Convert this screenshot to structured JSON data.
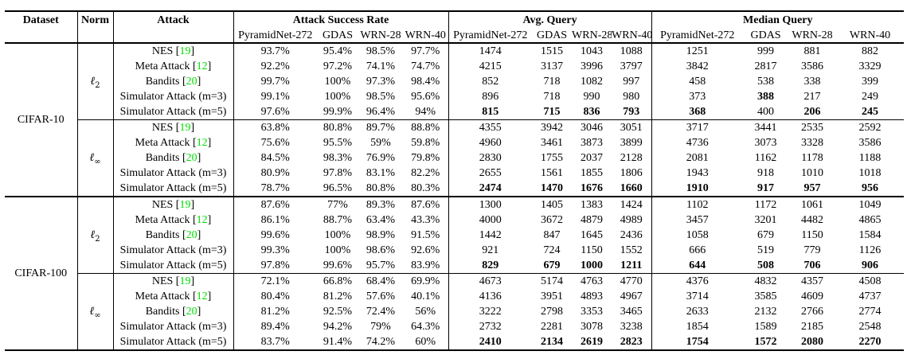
{
  "table": {
    "colors": {
      "citation_green": "#00dd00",
      "text": "#000000",
      "rule": "#000000"
    },
    "header": {
      "dataset": "Dataset",
      "norm": "Norm",
      "attack": "Attack",
      "group_asr": "Attack Success Rate",
      "group_avg": "Avg. Query",
      "group_median": "Median Query",
      "subcols": [
        "PyramidNet-272",
        "GDAS",
        "WRN-28",
        "WRN-40"
      ]
    },
    "sections": [
      {
        "dataset": "CIFAR-10",
        "blocks": [
          {
            "norm": {
              "symbol": "ℓ",
              "sub": "2"
            },
            "rows": [
              {
                "attack": "NES",
                "cite": "19",
                "asr": [
                  "93.7%",
                  "95.4%",
                  "98.5%",
                  "97.7%"
                ],
                "avg": [
                  "1474",
                  "1515",
                  "1043",
                  "1088"
                ],
                "med": [
                  "1251",
                  "999",
                  "881",
                  "882"
                ]
              },
              {
                "attack": "Meta Attack",
                "cite": "12",
                "asr": [
                  "92.2%",
                  "97.2%",
                  "74.1%",
                  "74.7%"
                ],
                "avg": [
                  "4215",
                  "3137",
                  "3996",
                  "3797"
                ],
                "med": [
                  "3842",
                  "2817",
                  "3586",
                  "3329"
                ]
              },
              {
                "attack": "Bandits",
                "cite": "20",
                "asr": [
                  "99.7%",
                  "100%",
                  "97.3%",
                  "98.4%"
                ],
                "avg": [
                  "852",
                  "718",
                  "1082",
                  "997"
                ],
                "med": [
                  "458",
                  "538",
                  "338",
                  "399"
                ]
              },
              {
                "attack": "Simulator Attack (m=3)",
                "asr": [
                  "99.1%",
                  "100%",
                  "98.5%",
                  "95.6%"
                ],
                "avg": [
                  "896",
                  "718",
                  "990",
                  "980"
                ],
                "med": [
                  "373",
                  "388",
                  "217",
                  "249"
                ],
                "med_bold": [
                  1
                ]
              },
              {
                "attack": "Simulator Attack (m=5)",
                "asr": [
                  "97.6%",
                  "99.9%",
                  "96.4%",
                  "94%"
                ],
                "avg": [
                  "815",
                  "715",
                  "836",
                  "793"
                ],
                "med": [
                  "368",
                  "400",
                  "206",
                  "245"
                ],
                "avg_bold": [
                  0,
                  1,
                  2,
                  3
                ],
                "med_bold": [
                  0,
                  2,
                  3
                ]
              }
            ]
          },
          {
            "norm": {
              "symbol": "ℓ",
              "sub": "∞"
            },
            "rows": [
              {
                "attack": "NES",
                "cite": "19",
                "asr": [
                  "63.8%",
                  "80.8%",
                  "89.7%",
                  "88.8%"
                ],
                "avg": [
                  "4355",
                  "3942",
                  "3046",
                  "3051"
                ],
                "med": [
                  "3717",
                  "3441",
                  "2535",
                  "2592"
                ]
              },
              {
                "attack": "Meta Attack",
                "cite": "12",
                "asr": [
                  "75.6%",
                  "95.5%",
                  "59%",
                  "59.8%"
                ],
                "avg": [
                  "4960",
                  "3461",
                  "3873",
                  "3899"
                ],
                "med": [
                  "4736",
                  "3073",
                  "3328",
                  "3586"
                ]
              },
              {
                "attack": "Bandits",
                "cite": "20",
                "asr": [
                  "84.5%",
                  "98.3%",
                  "76.9%",
                  "79.8%"
                ],
                "avg": [
                  "2830",
                  "1755",
                  "2037",
                  "2128"
                ],
                "med": [
                  "2081",
                  "1162",
                  "1178",
                  "1188"
                ]
              },
              {
                "attack": "Simulator Attack (m=3)",
                "asr": [
                  "80.9%",
                  "97.8%",
                  "83.1%",
                  "82.2%"
                ],
                "avg": [
                  "2655",
                  "1561",
                  "1855",
                  "1806"
                ],
                "med": [
                  "1943",
                  "918",
                  "1010",
                  "1018"
                ]
              },
              {
                "attack": "Simulator Attack (m=5)",
                "asr": [
                  "78.7%",
                  "96.5%",
                  "80.8%",
                  "80.3%"
                ],
                "avg": [
                  "2474",
                  "1470",
                  "1676",
                  "1660"
                ],
                "med": [
                  "1910",
                  "917",
                  "957",
                  "956"
                ],
                "avg_bold": [
                  0,
                  1,
                  2,
                  3
                ],
                "med_bold": [
                  0,
                  1,
                  2,
                  3
                ]
              }
            ]
          }
        ]
      },
      {
        "dataset": "CIFAR-100",
        "blocks": [
          {
            "norm": {
              "symbol": "ℓ",
              "sub": "2"
            },
            "rows": [
              {
                "attack": "NES",
                "cite": "19",
                "asr": [
                  "87.6%",
                  "77%",
                  "89.3%",
                  "87.6%"
                ],
                "avg": [
                  "1300",
                  "1405",
                  "1383",
                  "1424"
                ],
                "med": [
                  "1102",
                  "1172",
                  "1061",
                  "1049"
                ]
              },
              {
                "attack": "Meta Attack",
                "cite": "12",
                "asr": [
                  "86.1%",
                  "88.7%",
                  "63.4%",
                  "43.3%"
                ],
                "avg": [
                  "4000",
                  "3672",
                  "4879",
                  "4989"
                ],
                "med": [
                  "3457",
                  "3201",
                  "4482",
                  "4865"
                ]
              },
              {
                "attack": "Bandits",
                "cite": "20",
                "asr": [
                  "99.6%",
                  "100%",
                  "98.9%",
                  "91.5%"
                ],
                "avg": [
                  "1442",
                  "847",
                  "1645",
                  "2436"
                ],
                "med": [
                  "1058",
                  "679",
                  "1150",
                  "1584"
                ]
              },
              {
                "attack": "Simulator Attack (m=3)",
                "asr": [
                  "99.3%",
                  "100%",
                  "98.6%",
                  "92.6%"
                ],
                "avg": [
                  "921",
                  "724",
                  "1150",
                  "1552"
                ],
                "med": [
                  "666",
                  "519",
                  "779",
                  "1126"
                ]
              },
              {
                "attack": "Simulator Attack (m=5)",
                "asr": [
                  "97.8%",
                  "99.6%",
                  "95.7%",
                  "83.9%"
                ],
                "avg": [
                  "829",
                  "679",
                  "1000",
                  "1211"
                ],
                "med": [
                  "644",
                  "508",
                  "706",
                  "906"
                ],
                "avg_bold": [
                  0,
                  1,
                  2,
                  3
                ],
                "med_bold": [
                  0,
                  1,
                  2,
                  3
                ]
              }
            ]
          },
          {
            "norm": {
              "symbol": "ℓ",
              "sub": "∞"
            },
            "rows": [
              {
                "attack": "NES",
                "cite": "19",
                "asr": [
                  "72.1%",
                  "66.8%",
                  "68.4%",
                  "69.9%"
                ],
                "avg": [
                  "4673",
                  "5174",
                  "4763",
                  "4770"
                ],
                "med": [
                  "4376",
                  "4832",
                  "4357",
                  "4508"
                ]
              },
              {
                "attack": "Meta Attack",
                "cite": "12",
                "asr": [
                  "80.4%",
                  "81.2%",
                  "57.6%",
                  "40.1%"
                ],
                "avg": [
                  "4136",
                  "3951",
                  "4893",
                  "4967"
                ],
                "med": [
                  "3714",
                  "3585",
                  "4609",
                  "4737"
                ]
              },
              {
                "attack": "Bandits",
                "cite": "20",
                "asr": [
                  "81.2%",
                  "92.5%",
                  "72.4%",
                  "56%"
                ],
                "avg": [
                  "3222",
                  "2798",
                  "3353",
                  "3465"
                ],
                "med": [
                  "2633",
                  "2132",
                  "2766",
                  "2774"
                ]
              },
              {
                "attack": "Simulator Attack (m=3)",
                "asr": [
                  "89.4%",
                  "94.2%",
                  "79%",
                  "64.3%"
                ],
                "avg": [
                  "2732",
                  "2281",
                  "3078",
                  "3238"
                ],
                "med": [
                  "1854",
                  "1589",
                  "2185",
                  "2548"
                ]
              },
              {
                "attack": "Simulator Attack (m=5)",
                "asr": [
                  "83.7%",
                  "91.4%",
                  "74.2%",
                  "60%"
                ],
                "avg": [
                  "2410",
                  "2134",
                  "2619",
                  "2823"
                ],
                "med": [
                  "1754",
                  "1572",
                  "2080",
                  "2270"
                ],
                "avg_bold": [
                  0,
                  1,
                  2,
                  3
                ],
                "med_bold": [
                  0,
                  1,
                  2,
                  3
                ]
              }
            ]
          }
        ]
      }
    ]
  }
}
